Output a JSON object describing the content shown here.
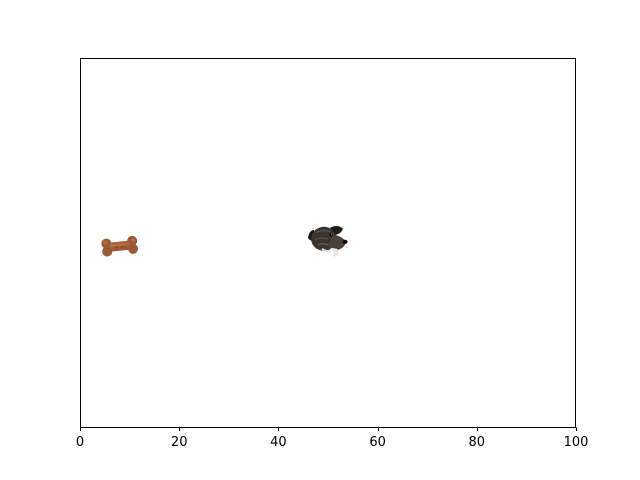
{
  "plot": {
    "xlim": [
      0,
      100
    ],
    "ylim": [
      0,
      100
    ],
    "x_ticks": [
      0,
      20,
      40,
      60,
      80,
      100
    ],
    "y_axis_visible": false,
    "frame_color": "#000000",
    "background": "#ffffff"
  },
  "sprites": [
    {
      "name": "dog-bone-sprite",
      "icon": "dog-bone",
      "x": 8,
      "y": 49,
      "color": "#9c5a34"
    },
    {
      "name": "dog-head-sprite",
      "icon": "dog-head",
      "x": 50,
      "y": 51,
      "color": "#2b2624"
    }
  ]
}
